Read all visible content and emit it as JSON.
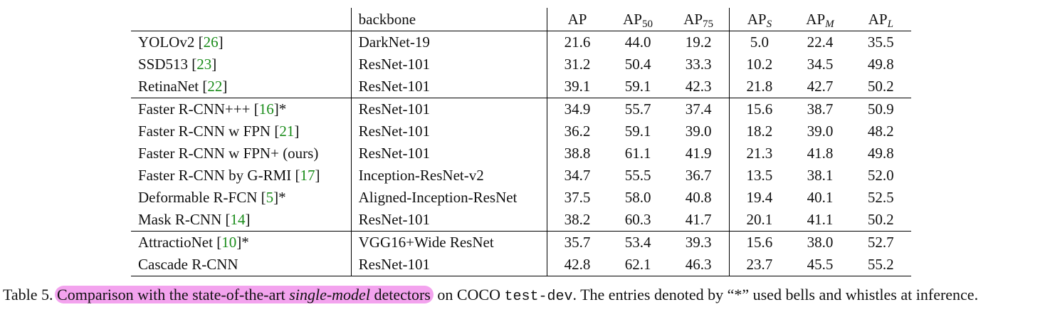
{
  "table": {
    "header": {
      "method": "",
      "backbone": "backbone",
      "metrics": [
        {
          "base": "AP",
          "sub": "",
          "italic": false
        },
        {
          "base": "AP",
          "sub": "50",
          "italic": false
        },
        {
          "base": "AP",
          "sub": "75",
          "italic": false
        },
        {
          "base": "AP",
          "sub": "S",
          "italic": true
        },
        {
          "base": "AP",
          "sub": "M",
          "italic": true
        },
        {
          "base": "AP",
          "sub": "L",
          "italic": true
        }
      ]
    },
    "rows": [
      {
        "method": "YOLOv2 ",
        "ref": "26",
        "suffix": "",
        "backbone": "DarkNet-19",
        "values": [
          "21.6",
          "44.0",
          "19.2",
          "5.0",
          "22.4",
          "35.5"
        ]
      },
      {
        "method": "SSD513 ",
        "ref": "23",
        "suffix": "",
        "backbone": "ResNet-101",
        "values": [
          "31.2",
          "50.4",
          "33.3",
          "10.2",
          "34.5",
          "49.8"
        ]
      },
      {
        "method": "RetinaNet ",
        "ref": "22",
        "suffix": "",
        "backbone": "ResNet-101",
        "values": [
          "39.1",
          "59.1",
          "42.3",
          "21.8",
          "42.7",
          "50.2"
        ]
      },
      {
        "method": "Faster R-CNN+++ ",
        "ref": "16",
        "suffix": "*",
        "backbone": "ResNet-101",
        "values": [
          "34.9",
          "55.7",
          "37.4",
          "15.6",
          "38.7",
          "50.9"
        ]
      },
      {
        "method": "Faster R-CNN w FPN ",
        "ref": "21",
        "suffix": "",
        "backbone": "ResNet-101",
        "values": [
          "36.2",
          "59.1",
          "39.0",
          "18.2",
          "39.0",
          "48.2"
        ]
      },
      {
        "method": "Faster R-CNN w FPN+ (ours)",
        "ref": "",
        "suffix": "",
        "backbone": "ResNet-101",
        "values": [
          "38.8",
          "61.1",
          "41.9",
          "21.3",
          "41.8",
          "49.8"
        ]
      },
      {
        "method": "Faster R-CNN by G-RMI ",
        "ref": "17",
        "suffix": "",
        "backbone": "Inception-ResNet-v2",
        "values": [
          "34.7",
          "55.5",
          "36.7",
          "13.5",
          "38.1",
          "52.0"
        ]
      },
      {
        "method": "Deformable R-FCN ",
        "ref": "5",
        "suffix": "*",
        "backbone": "Aligned-Inception-ResNet",
        "values": [
          "37.5",
          "58.0",
          "40.8",
          "19.4",
          "40.1",
          "52.5"
        ]
      },
      {
        "method": "Mask R-CNN ",
        "ref": "14",
        "suffix": "",
        "backbone": "ResNet-101",
        "values": [
          "38.2",
          "60.3",
          "41.7",
          "20.1",
          "41.1",
          "50.2"
        ]
      },
      {
        "method": "AttractioNet ",
        "ref": "10",
        "suffix": "*",
        "backbone": "VGG16+Wide ResNet",
        "values": [
          "35.7",
          "53.4",
          "39.3",
          "15.6",
          "38.0",
          "52.7"
        ]
      },
      {
        "method": "Cascade R-CNN",
        "ref": "",
        "suffix": "",
        "backbone": "ResNet-101",
        "values": [
          "42.8",
          "62.1",
          "46.3",
          "23.7",
          "45.5",
          "55.2"
        ],
        "bold": true
      }
    ]
  },
  "caption": {
    "label": "Table 5. ",
    "highlight_pre": "Comparison with the state-of-the-art ",
    "highlight_em": "single-model",
    "highlight_post": " detectors",
    "mid": " on COCO ",
    "code": "test-dev",
    "rest": ". The entries denoted by “*” used bells and whistles at inference.",
    "highlight_color": "#f3a3ee"
  },
  "colors": {
    "text": "#111111",
    "reference_link": "#1a8c1a",
    "rule": "#000000"
  }
}
